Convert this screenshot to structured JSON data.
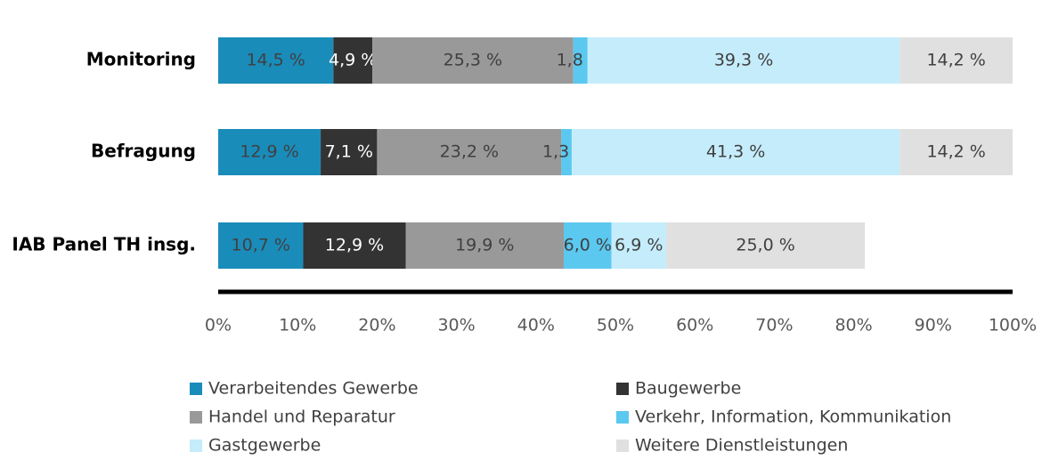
{
  "chart_data": {
    "type": "stacked_barh",
    "categories": [
      "Monitoring",
      "Befragung",
      "IAB Panel TH insg."
    ],
    "series": [
      {
        "name": "Verarbeitendes Gewerbe",
        "color": "#1a8cba",
        "values": [
          14.5,
          12.9,
          10.7
        ],
        "value_labels": [
          "14,5 %",
          "12,9 %",
          "10,7 %"
        ]
      },
      {
        "name": "Baugewerbe",
        "color": "#333333",
        "values": [
          4.9,
          7.1,
          12.9
        ],
        "value_labels": [
          "4,9 %",
          "7,1 %",
          "12,9 %"
        ]
      },
      {
        "name": "Handel und Reparatur",
        "color": "#999999",
        "values": [
          25.3,
          23.2,
          19.9
        ],
        "value_labels": [
          "25,3 %",
          "23,2 %",
          "19,9 %"
        ]
      },
      {
        "name": "Verkehr, Information, Kommunikation",
        "color": "#5bc8f0",
        "values": [
          1.8,
          1.3,
          6.0
        ],
        "value_labels": [
          "1,8 %",
          "1,3 %",
          "6,0 %"
        ]
      },
      {
        "name": "Gastgewerbe",
        "color": "#c5ecfb",
        "values": [
          39.3,
          41.3,
          6.9
        ],
        "value_labels": [
          "39,3 %",
          "41,3 %",
          "6,9 %"
        ]
      },
      {
        "name": "Weitere Dienstleistungen",
        "color": "#e0e0e0",
        "values": [
          14.2,
          14.2,
          25.0
        ],
        "value_labels": [
          "14,2 %",
          "14,2 %",
          "25,0 %"
        ]
      }
    ],
    "xlim": [
      0,
      100
    ],
    "xticks": [
      {
        "value": 0,
        "label": "0%"
      },
      {
        "value": 10,
        "label": "10%"
      },
      {
        "value": 20,
        "label": "20%"
      },
      {
        "value": 30,
        "label": "30%"
      },
      {
        "value": 40,
        "label": "40%"
      },
      {
        "value": 50,
        "label": "50%"
      },
      {
        "value": 60,
        "label": "60%"
      },
      {
        "value": 70,
        "label": "70%"
      },
      {
        "value": 80,
        "label": "80%"
      },
      {
        "value": 90,
        "label": "90%"
      },
      {
        "value": 100,
        "label": "100%"
      }
    ],
    "grid": false,
    "legend": "bottom"
  }
}
